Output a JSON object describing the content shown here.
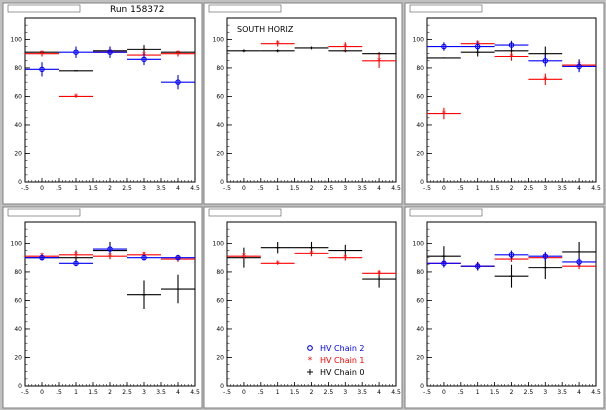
{
  "page": {
    "run_label": "Run 158372",
    "legend": {
      "entries": [
        {
          "label": "HV Chain 2",
          "color": "#0000ff",
          "marker": "circle"
        },
        {
          "label": "HV Chain 1",
          "color": "#ff0000",
          "marker": "star"
        },
        {
          "label": "HV Chain 0",
          "color": "#000000",
          "marker": "cross"
        }
      ]
    }
  },
  "chart_data": [
    {
      "type": "scatter",
      "title": "",
      "panel_label": "",
      "xlim": [
        -0.5,
        4.5
      ],
      "ylim": [
        0,
        115
      ],
      "xticks": [
        -0.5,
        0,
        0.5,
        1,
        1.5,
        2,
        2.5,
        3,
        3.5,
        4,
        4.5
      ],
      "yticks": [
        0,
        20,
        40,
        60,
        80,
        100
      ],
      "series": [
        {
          "name": "HV Chain 0",
          "color": "#000000",
          "x": [
            0,
            1,
            2,
            3,
            4
          ],
          "y": [
            91,
            78,
            92,
            93,
            91
          ],
          "xerr": 0.5,
          "yerr": [
            0,
            0,
            3,
            3,
            0
          ]
        },
        {
          "name": "HV Chain 1",
          "color": "#ff0000",
          "x": [
            0,
            1,
            2,
            3,
            4
          ],
          "y": [
            90,
            60,
            91,
            89,
            90
          ],
          "xerr": 0.5,
          "yerr": [
            2,
            1,
            2,
            2,
            2
          ]
        },
        {
          "name": "HV Chain 2",
          "color": "#0000ff",
          "x": [
            0,
            1,
            2,
            3,
            4
          ],
          "y": [
            79,
            91,
            91,
            86,
            70
          ],
          "xerr": 0.5,
          "yerr": [
            5,
            4,
            4,
            4,
            5
          ]
        }
      ]
    },
    {
      "type": "scatter",
      "title": "",
      "panel_label": "SOUTH HORIZ",
      "xlim": [
        -0.5,
        4.5
      ],
      "ylim": [
        0,
        115
      ],
      "xticks": [
        -0.5,
        0,
        0.5,
        1,
        1.5,
        2,
        2.5,
        3,
        3.5,
        4,
        4.5
      ],
      "yticks": [
        0,
        20,
        40,
        60,
        80,
        100
      ],
      "series": [
        {
          "name": "HV Chain 0",
          "color": "#000000",
          "x": [
            0,
            1,
            2,
            3,
            4
          ],
          "y": [
            92,
            92,
            94,
            92,
            90
          ],
          "xerr": 0.5,
          "yerr": [
            1,
            1,
            1,
            1,
            1
          ]
        },
        {
          "name": "HV Chain 1",
          "color": "#ff0000",
          "x": [
            1,
            3,
            4
          ],
          "y": [
            97,
            95,
            85
          ],
          "xerr": 0.5,
          "yerr": [
            2,
            3,
            5
          ]
        }
      ]
    },
    {
      "type": "scatter",
      "title": "",
      "panel_label": "",
      "xlim": [
        -0.5,
        4.5
      ],
      "ylim": [
        0,
        115
      ],
      "xticks": [
        -0.5,
        0,
        0.5,
        1,
        1.5,
        2,
        2.5,
        3,
        3.5,
        4,
        4.5
      ],
      "yticks": [
        0,
        20,
        40,
        60,
        80,
        100
      ],
      "series": [
        {
          "name": "HV Chain 0",
          "color": "#000000",
          "x": [
            0,
            1,
            2,
            3,
            4
          ],
          "y": [
            87,
            91,
            92,
            90,
            82
          ],
          "xerr": 0.5,
          "yerr": [
            0,
            3,
            4,
            5,
            4
          ]
        },
        {
          "name": "HV Chain 1",
          "color": "#ff0000",
          "x": [
            0,
            1,
            2,
            3,
            4
          ],
          "y": [
            48,
            97,
            88,
            72,
            82
          ],
          "xerr": 0.5,
          "yerr": [
            4,
            2,
            3,
            4,
            2
          ]
        },
        {
          "name": "HV Chain 2",
          "color": "#0000ff",
          "x": [
            0,
            1,
            2,
            3,
            4
          ],
          "y": [
            95,
            95,
            96,
            85,
            81
          ],
          "xerr": 0.5,
          "yerr": [
            3,
            3,
            3,
            4,
            4
          ]
        }
      ]
    },
    {
      "type": "scatter",
      "title": "",
      "panel_label": "",
      "xlim": [
        -0.5,
        4.5
      ],
      "ylim": [
        0,
        115
      ],
      "xticks": [
        -0.5,
        0,
        0.5,
        1,
        1.5,
        2,
        2.5,
        3,
        3.5,
        4,
        4.5
      ],
      "yticks": [
        0,
        20,
        40,
        60,
        80,
        100
      ],
      "series": [
        {
          "name": "HV Chain 0",
          "color": "#000000",
          "x": [
            0,
            1,
            2,
            3,
            4
          ],
          "y": [
            90,
            90,
            95,
            64,
            68
          ],
          "xerr": 0.5,
          "yerr": [
            2,
            5,
            6,
            10,
            10
          ]
        },
        {
          "name": "HV Chain 1",
          "color": "#ff0000",
          "x": [
            0,
            1,
            2,
            3,
            4
          ],
          "y": [
            91,
            92,
            91,
            92,
            89
          ],
          "xerr": 0.5,
          "yerr": [
            2,
            2,
            2,
            2,
            2
          ]
        },
        {
          "name": "HV Chain 2",
          "color": "#0000ff",
          "x": [
            0,
            1,
            2,
            3,
            4
          ],
          "y": [
            90,
            86,
            96,
            90,
            90
          ],
          "xerr": 0.5,
          "yerr": [
            2,
            2,
            3,
            2,
            2
          ]
        }
      ]
    },
    {
      "type": "scatter",
      "title": "",
      "panel_label": "",
      "xlim": [
        -0.5,
        4.5
      ],
      "ylim": [
        0,
        115
      ],
      "xticks": [
        -0.5,
        0,
        0.5,
        1,
        1.5,
        2,
        2.5,
        3,
        3.5,
        4,
        4.5
      ],
      "yticks": [
        0,
        20,
        40,
        60,
        80,
        100
      ],
      "series": [
        {
          "name": "HV Chain 0",
          "color": "#000000",
          "x": [
            0,
            1,
            2,
            3,
            4
          ],
          "y": [
            90,
            97,
            97,
            95,
            75
          ],
          "xerr": 0.5,
          "yerr": [
            7,
            4,
            4,
            4,
            6
          ]
        },
        {
          "name": "HV Chain 1",
          "color": "#ff0000",
          "x": [
            0,
            1,
            2,
            3,
            4
          ],
          "y": [
            91,
            86,
            93,
            90,
            79
          ],
          "xerr": 0.5,
          "yerr": [
            2,
            1,
            2,
            2,
            2
          ]
        }
      ]
    },
    {
      "type": "scatter",
      "title": "",
      "panel_label": "",
      "xlim": [
        -0.5,
        4.5
      ],
      "ylim": [
        0,
        115
      ],
      "xticks": [
        -0.5,
        0,
        0.5,
        1,
        1.5,
        2,
        2.5,
        3,
        3.5,
        4,
        4.5
      ],
      "yticks": [
        0,
        20,
        40,
        60,
        80,
        100
      ],
      "series": [
        {
          "name": "HV Chain 0",
          "color": "#000000",
          "x": [
            0,
            1,
            2,
            3,
            4
          ],
          "y": [
            91,
            84,
            77,
            83,
            94
          ],
          "xerr": 0.5,
          "yerr": [
            7,
            3,
            8,
            8,
            7
          ]
        },
        {
          "name": "HV Chain 1",
          "color": "#ff0000",
          "x": [
            0,
            1,
            2,
            3,
            4
          ],
          "y": [
            86,
            84,
            89,
            90,
            84
          ],
          "xerr": 0.5,
          "yerr": [
            2,
            2,
            2,
            2,
            2
          ]
        },
        {
          "name": "HV Chain 2",
          "color": "#0000ff",
          "x": [
            0,
            1,
            2,
            3,
            4
          ],
          "y": [
            86,
            84,
            92,
            91,
            87
          ],
          "xerr": 0.5,
          "yerr": [
            3,
            3,
            3,
            3,
            3
          ]
        }
      ]
    }
  ]
}
